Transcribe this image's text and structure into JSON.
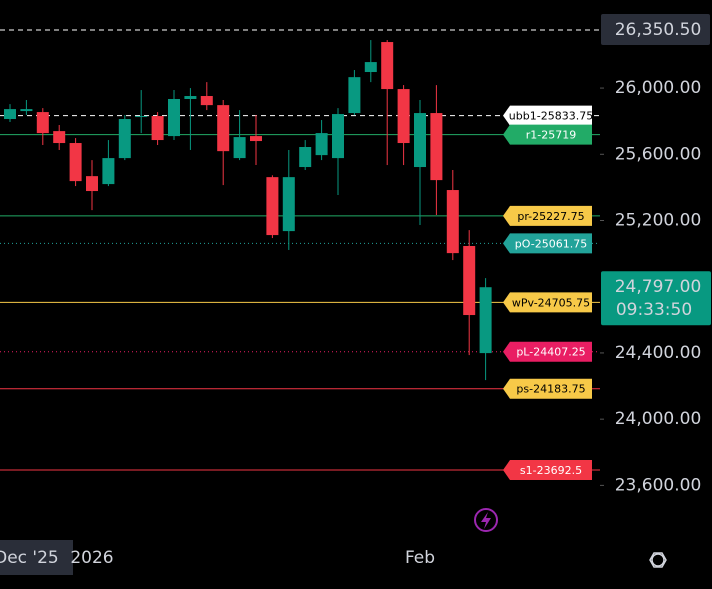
{
  "chart_data": {
    "type": "candlestick",
    "up_color": "#089981",
    "down_color": "#f23645",
    "ylim": [
      23270,
      26532
    ],
    "yticks": [
      {
        "value": 26000,
        "label": "26,000.00"
      },
      {
        "value": 25600,
        "label": "25,600.00"
      },
      {
        "value": 25200,
        "label": "25,200.00"
      },
      {
        "value": 24400,
        "label": "24,400.00"
      },
      {
        "value": 24000,
        "label": "24,000.00"
      },
      {
        "value": 23600,
        "label": "23,600.00"
      }
    ],
    "categories": [
      null,
      "Dec '25",
      null,
      null,
      null,
      "2026",
      null,
      null,
      null,
      null,
      null,
      null,
      null,
      null,
      null,
      null,
      null,
      null,
      null,
      null,
      null,
      null,
      null,
      null,
      null,
      "Feb",
      null,
      null,
      null,
      null
    ],
    "open": [
      25813,
      25861,
      25855,
      25740,
      25668,
      25468,
      25420,
      25577,
      25825,
      25831,
      25710,
      25934,
      25952,
      25897,
      25577,
      25710,
      25462,
      25136,
      25523,
      25595,
      25577,
      25849,
      26097,
      26278,
      25994,
      25523,
      25849,
      25384,
      25046,
      24399
    ],
    "high": [
      25903,
      25928,
      25879,
      25777,
      25698,
      25565,
      25686,
      25837,
      25988,
      25855,
      25988,
      26000,
      26036,
      25928,
      25867,
      25837,
      25473,
      25626,
      25686,
      25807,
      25879,
      26109,
      26290,
      26290,
      26018,
      25928,
      26018,
      25505,
      25142,
      24852
    ],
    "low": [
      25795,
      25837,
      25656,
      25626,
      25408,
      25263,
      25408,
      25565,
      25728,
      25656,
      25686,
      25626,
      25867,
      25414,
      25565,
      25535,
      25094,
      25022,
      25505,
      25565,
      25354,
      25837,
      26036,
      25535,
      25535,
      25173,
      25233,
      24961,
      24387,
      24236
    ],
    "close": [
      25873,
      25873,
      25728,
      25668,
      25438,
      25378,
      25577,
      25813,
      25831,
      25686,
      25934,
      25952,
      25897,
      25619,
      25704,
      25680,
      25112,
      25462,
      25644,
      25728,
      25843,
      26066,
      26157,
      25994,
      25668,
      25849,
      25444,
      25003,
      24629,
      24797
    ],
    "levels": [
      {
        "label": "ubb1-25833.75",
        "value": 25833.75,
        "color": "#ffffff",
        "text_color": "#000000",
        "style": "dashed"
      },
      {
        "label": "r1-25719",
        "value": 25719,
        "color": "#22ab67",
        "text_color": "#ffffff",
        "style": "solid"
      },
      {
        "label": "pr-25227.75",
        "value": 25227.75,
        "color": "#f7c948",
        "text_color": "#000000",
        "style": "solid",
        "line_color": "#22ab67"
      },
      {
        "label": "pO-25061.75",
        "value": 25061.75,
        "color": "#22a39a",
        "text_color": "#ffffff",
        "style": "dotted"
      },
      {
        "label": "wPv-24705.75",
        "value": 24705.75,
        "color": "#f7c948",
        "text_color": "#000000",
        "style": "solid"
      },
      {
        "label": "pL-24407.25",
        "value": 24407.25,
        "color": "#e91e63",
        "text_color": "#ffffff",
        "style": "dotted"
      },
      {
        "label": "ps-24183.75",
        "value": 24183.75,
        "color": "#f7c948",
        "text_color": "#000000",
        "style": "solid",
        "line_color": "#f23645"
      },
      {
        "label": "s1-23692.5",
        "value": 23692.5,
        "color": "#f23645",
        "text_color": "#ffffff",
        "style": "solid"
      }
    ],
    "top_marker": {
      "value": 26350.5,
      "label": "26,350.50"
    },
    "last_price": {
      "value": 24797,
      "label": "24,797.00"
    },
    "countdown": "09:33:50"
  }
}
